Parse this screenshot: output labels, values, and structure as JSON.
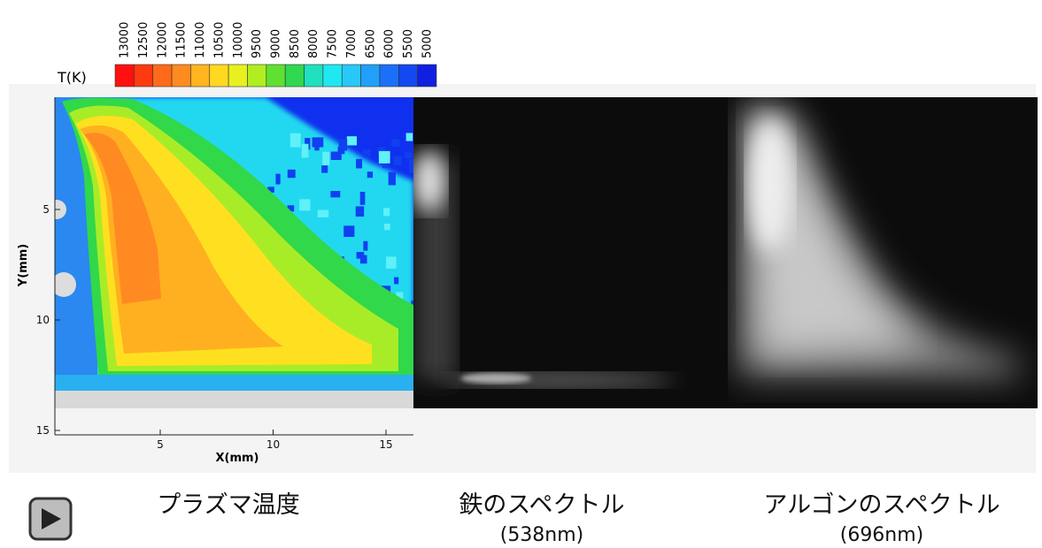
{
  "colorbar": {
    "label": "T(K)",
    "ticks": [
      13000,
      12500,
      12000,
      11500,
      11000,
      10500,
      10000,
      9500,
      9000,
      8500,
      8000,
      7500,
      7000,
      6500,
      6000,
      5500,
      5000
    ],
    "colors": [
      "#ff1010",
      "#ff3a10",
      "#ff6a18",
      "#ff8a20",
      "#ffb420",
      "#ffd820",
      "#e8f020",
      "#b0ee20",
      "#60e030",
      "#30d850",
      "#20e0c0",
      "#20e8f0",
      "#28c8f8",
      "#20a0f8",
      "#1a70f8",
      "#1448f0",
      "#1020e0"
    ]
  },
  "temperature_plot": {
    "y_axis_label": "Y(mm)",
    "x_axis_label": "X(mm)",
    "yticks": [
      5,
      10,
      15
    ],
    "xticks": [
      5,
      10,
      15
    ]
  },
  "captions": [
    {
      "title": "プラズマ温度"
    },
    {
      "title": "鉄のスペクトル",
      "subtitle": "(538nm)"
    },
    {
      "title": "アルゴンのスペクトル",
      "subtitle": "(696nm)"
    }
  ]
}
